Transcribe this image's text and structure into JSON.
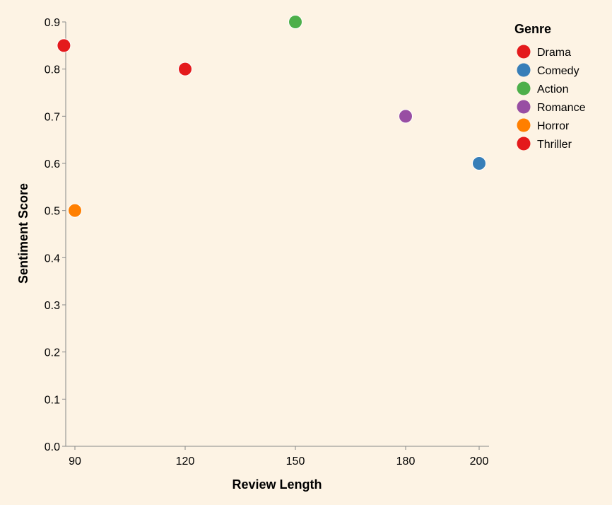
{
  "chart_data": {
    "type": "scatter",
    "xlabel": "Review Length",
    "ylabel": "Sentiment Score",
    "x_ticks": [
      90,
      120,
      150,
      180,
      200
    ],
    "y_ticks": [
      0.0,
      0.1,
      0.2,
      0.3,
      0.4,
      0.5,
      0.6,
      0.7,
      0.8,
      0.9
    ],
    "x_tick_labels": [
      "90",
      "120",
      "150",
      "180",
      "200"
    ],
    "y_tick_labels": [
      "0.0",
      "0.1",
      "0.2",
      "0.3",
      "0.4",
      "0.5",
      "0.6",
      "0.7",
      "0.8",
      "0.9"
    ],
    "legend": {
      "title": "Genre",
      "placement": "top-right",
      "entries": [
        {
          "label": "Drama",
          "color": "#e41a1c"
        },
        {
          "label": "Comedy",
          "color": "#377eb8"
        },
        {
          "label": "Action",
          "color": "#4daf4a"
        },
        {
          "label": "Romance",
          "color": "#984ea3"
        },
        {
          "label": "Horror",
          "color": "#ff7f00"
        },
        {
          "label": "Thriller",
          "color": "#e41a1c"
        }
      ]
    },
    "points": [
      {
        "genre": "Thriller",
        "x": 87,
        "y": 0.85
      },
      {
        "genre": "Horror",
        "x": 90,
        "y": 0.5
      },
      {
        "genre": "Drama",
        "x": 120,
        "y": 0.8
      },
      {
        "genre": "Action",
        "x": 150,
        "y": 0.9
      },
      {
        "genre": "Romance",
        "x": 180,
        "y": 0.7
      },
      {
        "genre": "Comedy",
        "x": 200,
        "y": 0.6
      }
    ],
    "grid": false
  }
}
